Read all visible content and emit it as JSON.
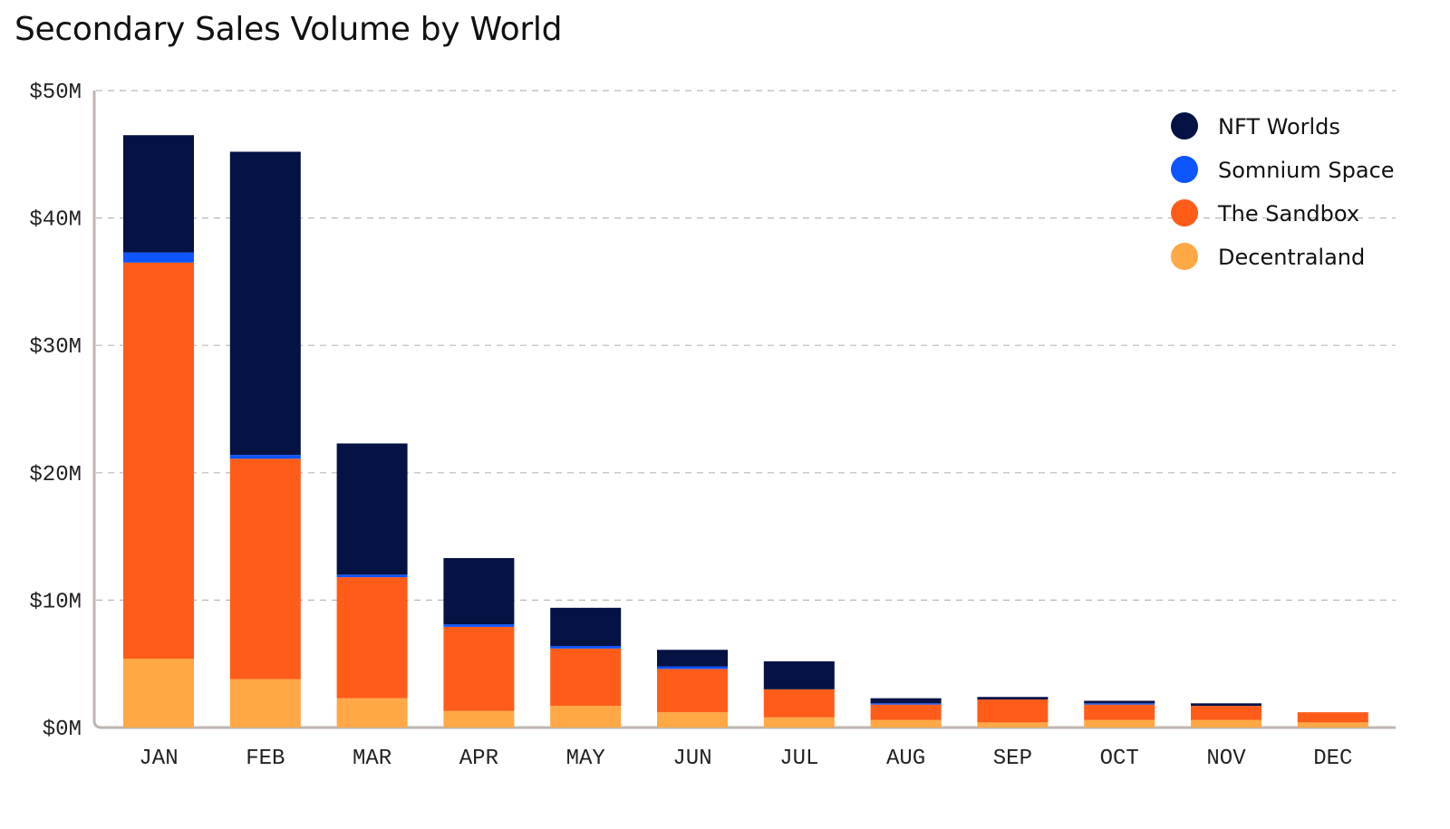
{
  "chart_data": {
    "type": "bar",
    "stacked": true,
    "title": "Secondary Sales Volume by World",
    "xlabel": "",
    "ylabel": "",
    "categories": [
      "JAN",
      "FEB",
      "MAR",
      "APR",
      "MAY",
      "JUN",
      "JUL",
      "AUG",
      "SEP",
      "OCT",
      "NOV",
      "DEC"
    ],
    "yticks": [
      "$0M",
      "$10M",
      "$20M",
      "$30M",
      "$40M",
      "$50M"
    ],
    "ylim": [
      0,
      50
    ],
    "unit": "$M",
    "grid": true,
    "legend_position": "top-right",
    "series": [
      {
        "name": "Decentraland",
        "color": "#FFA845",
        "values": [
          5.4,
          3.8,
          2.3,
          1.3,
          1.7,
          1.2,
          0.8,
          0.6,
          0.4,
          0.6,
          0.6,
          0.4
        ]
      },
      {
        "name": "The Sandbox",
        "color": "#FF5C1A",
        "values": [
          31.1,
          17.3,
          9.5,
          6.6,
          4.5,
          3.4,
          2.2,
          1.2,
          1.8,
          1.2,
          1.1,
          0.8
        ]
      },
      {
        "name": "Somnium Space",
        "color": "#0D55FF",
        "values": [
          0.8,
          0.3,
          0.2,
          0.2,
          0.2,
          0.2,
          0.0,
          0.1,
          0.0,
          0.1,
          0.0,
          0.0
        ]
      },
      {
        "name": "NFT Worlds",
        "color": "#051244",
        "values": [
          9.2,
          23.8,
          10.3,
          5.2,
          3.0,
          1.3,
          2.2,
          0.4,
          0.2,
          0.2,
          0.2,
          0.0
        ]
      }
    ],
    "legend_order": [
      "NFT Worlds",
      "Somnium Space",
      "The Sandbox",
      "Decentraland"
    ]
  }
}
